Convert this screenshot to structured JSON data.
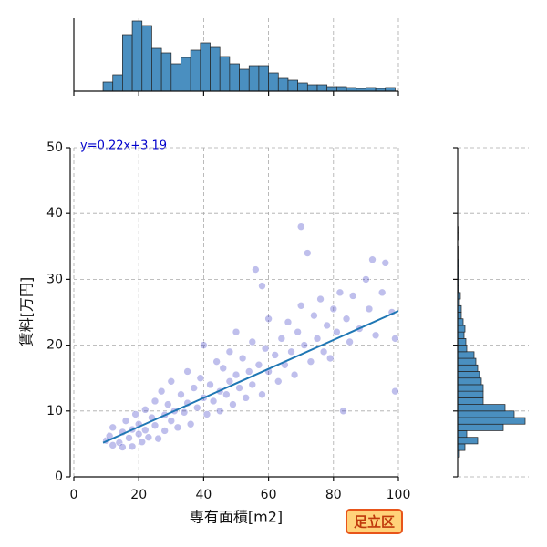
{
  "chart_data": [
    {
      "type": "scatter",
      "x_label": "専有面積[m2]",
      "y_label": "賃料[万円]",
      "annotation": "y=0.22x+3.19",
      "badge": "足立区",
      "xlim": [
        0,
        100
      ],
      "ylim": [
        0,
        50
      ],
      "xticks": [
        0,
        20,
        40,
        60,
        80,
        100
      ],
      "yticks": [
        0,
        10,
        20,
        30,
        40,
        50
      ],
      "grid": true,
      "color": "#2b2bc0",
      "x": [
        10,
        11,
        12,
        12,
        14,
        15,
        15,
        16,
        17,
        18,
        18,
        19,
        20,
        20,
        21,
        22,
        22,
        23,
        24,
        25,
        25,
        26,
        27,
        28,
        28,
        29,
        30,
        30,
        31,
        32,
        33,
        34,
        35,
        35,
        36,
        37,
        38,
        39,
        40,
        40,
        41,
        42,
        43,
        44,
        45,
        45,
        46,
        47,
        48,
        48,
        49,
        50,
        50,
        51,
        52,
        53,
        54,
        55,
        55,
        56,
        57,
        58,
        58,
        59,
        60,
        60,
        62,
        63,
        64,
        65,
        66,
        67,
        68,
        69,
        70,
        70,
        71,
        72,
        73,
        74,
        75,
        76,
        77,
        78,
        79,
        80,
        81,
        82,
        83,
        84,
        85,
        86,
        88,
        90,
        91,
        92,
        93,
        95,
        96,
        98,
        99,
        99
      ],
      "y": [
        5.5,
        6.2,
        4.8,
        7.5,
        5.2,
        6.8,
        4.5,
        8.5,
        5.9,
        7.2,
        4.6,
        9.5,
        6.5,
        8.0,
        5.3,
        10.2,
        7.1,
        6.0,
        9.0,
        11.5,
        7.8,
        5.8,
        13.0,
        9.4,
        7.0,
        11.0,
        8.5,
        14.5,
        10.0,
        7.5,
        12.5,
        9.8,
        16.0,
        11.2,
        8.0,
        13.5,
        10.5,
        15.0,
        12.0,
        20.0,
        9.5,
        14.0,
        11.5,
        17.5,
        13.0,
        10.0,
        16.5,
        12.5,
        19.0,
        14.5,
        11.0,
        15.5,
        22.0,
        13.5,
        18.0,
        12.0,
        16.0,
        20.5,
        14.0,
        31.5,
        17.0,
        29.0,
        12.5,
        19.5,
        16.0,
        24.0,
        18.5,
        14.5,
        21.0,
        17.0,
        23.5,
        19.0,
        15.5,
        22.0,
        26.0,
        38.0,
        20.0,
        34.0,
        17.5,
        24.5,
        21.0,
        27.0,
        19.0,
        23.0,
        18.0,
        25.5,
        22.0,
        28.0,
        10.0,
        24.0,
        20.5,
        27.5,
        22.5,
        30.0,
        25.5,
        33.0,
        21.5,
        28.0,
        32.5,
        25.0,
        13.0,
        21.0
      ],
      "regression": {
        "x": [
          9,
          100
        ],
        "y": [
          5.17,
          25.19
        ],
        "color": "#1f77b4"
      }
    },
    {
      "type": "histogram",
      "orientation": "vertical",
      "color": "#4a8fc0",
      "xlim": [
        0,
        100
      ],
      "xticks": [
        0,
        20,
        40,
        60,
        80,
        100
      ],
      "ylim": [
        0,
        80
      ],
      "grid": true,
      "bins": [
        9,
        12,
        15,
        18,
        21,
        24,
        27,
        30,
        33,
        36,
        39,
        42,
        45,
        48,
        51,
        54,
        57,
        60,
        63,
        66,
        69,
        72,
        75,
        78,
        81,
        84,
        87,
        90,
        93,
        96,
        99
      ],
      "counts": [
        10,
        18,
        62,
        77,
        72,
        47,
        42,
        30,
        37,
        45,
        53,
        48,
        38,
        30,
        24,
        28,
        28,
        20,
        14,
        12,
        9,
        7,
        7,
        5,
        5,
        4,
        3,
        4,
        3,
        4
      ]
    },
    {
      "type": "histogram",
      "orientation": "horizontal",
      "color": "#4a8fc0",
      "ylim": [
        0,
        50
      ],
      "yticks": [
        0,
        10,
        20,
        30,
        40,
        50
      ],
      "xlim": [
        0,
        78
      ],
      "grid": true,
      "bins": [
        3,
        4,
        5,
        6,
        7,
        8,
        9,
        10,
        11,
        12,
        13,
        14,
        15,
        16,
        17,
        18,
        19,
        20,
        21,
        22,
        23,
        24,
        25,
        26,
        27,
        28,
        29,
        30,
        31,
        32,
        33,
        34,
        35,
        36,
        37,
        38
      ],
      "counts": [
        2,
        8,
        22,
        10,
        50,
        74,
        62,
        52,
        28,
        28,
        28,
        26,
        24,
        22,
        20,
        18,
        10,
        9,
        7,
        8,
        6,
        4,
        4,
        2,
        3,
        1,
        1,
        1,
        1,
        1,
        0.5,
        0.5,
        0,
        0.5,
        0.5
      ]
    }
  ]
}
